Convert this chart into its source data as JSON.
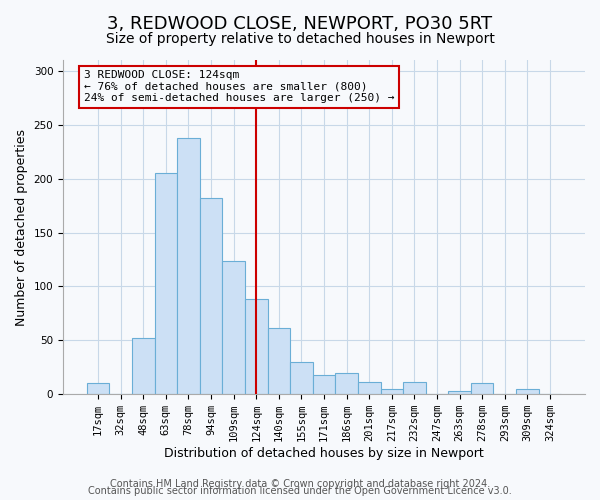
{
  "title": "3, REDWOOD CLOSE, NEWPORT, PO30 5RT",
  "subtitle": "Size of property relative to detached houses in Newport",
  "xlabel": "Distribution of detached houses by size in Newport",
  "ylabel": "Number of detached properties",
  "bar_labels": [
    "17sqm",
    "32sqm",
    "48sqm",
    "63sqm",
    "78sqm",
    "94sqm",
    "109sqm",
    "124sqm",
    "140sqm",
    "155sqm",
    "171sqm",
    "186sqm",
    "201sqm",
    "217sqm",
    "232sqm",
    "247sqm",
    "263sqm",
    "278sqm",
    "293sqm",
    "309sqm",
    "324sqm"
  ],
  "bar_values": [
    10,
    0,
    52,
    205,
    238,
    182,
    124,
    88,
    61,
    30,
    18,
    20,
    11,
    5,
    11,
    0,
    3,
    10,
    0,
    5,
    0
  ],
  "bar_color": "#cce0f5",
  "bar_edge_color": "#6aaed6",
  "annotation_line_color": "#cc0000",
  "annotation_box_line1": "3 REDWOOD CLOSE: 124sqm",
  "annotation_box_line2": "← 76% of detached houses are smaller (800)",
  "annotation_box_line3": "24% of semi-detached houses are larger (250) →",
  "annotation_box_color": "#cc0000",
  "ylim": [
    0,
    310
  ],
  "yticks": [
    0,
    50,
    100,
    150,
    200,
    250,
    300
  ],
  "footer_line1": "Contains HM Land Registry data © Crown copyright and database right 2024.",
  "footer_line2": "Contains public sector information licensed under the Open Government Licence v3.0.",
  "bg_color": "#f7f9fc",
  "grid_color": "#c8d8e8",
  "title_fontsize": 13,
  "subtitle_fontsize": 10,
  "xlabel_fontsize": 9,
  "ylabel_fontsize": 9,
  "tick_fontsize": 7.5,
  "annotation_fontsize": 8,
  "footer_fontsize": 7
}
